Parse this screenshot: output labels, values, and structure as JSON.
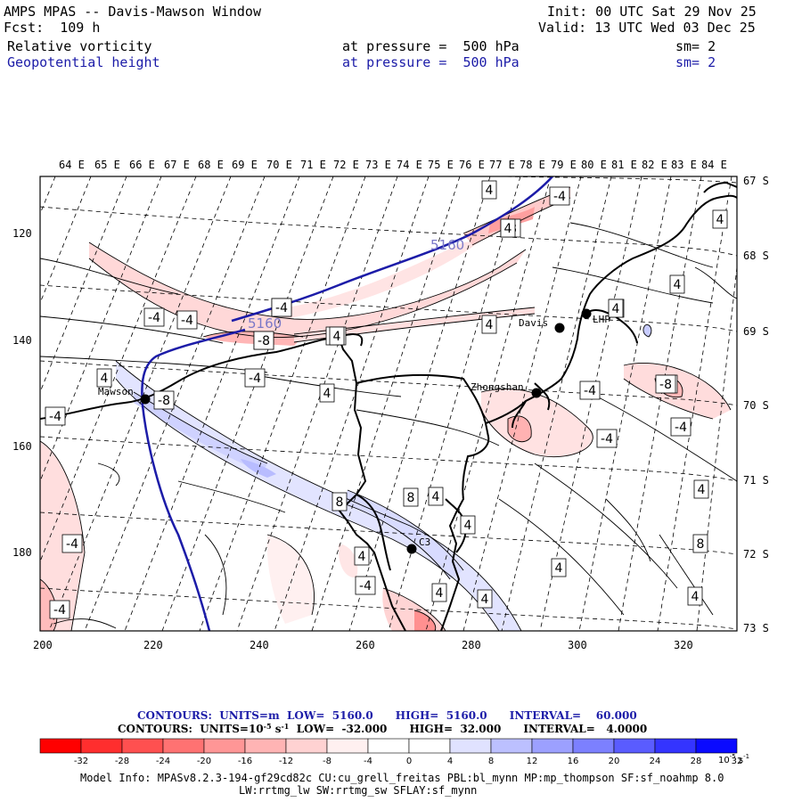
{
  "header": {
    "title": "AMPS MPAS -- Davis-Mawson Window",
    "forecast": "Fcst:  109 h",
    "init": "Init: 00 UTC Sat 29 Nov 25",
    "valid": "Valid: 13 UTC Wed 03 Dec 25",
    "fields": [
      {
        "name": "Relative vorticity",
        "level": "at pressure =  500 hPa",
        "sm": "sm= 2",
        "color": "#000000"
      },
      {
        "name": "Geopotential height",
        "level": "at pressure =  500 hPa",
        "sm": "sm= 2",
        "color": "#1c1ca8"
      }
    ]
  },
  "map": {
    "lon_labels": [
      "64 E",
      "65 E",
      "66 E",
      "67 E",
      "68 E",
      "69 E",
      "70 E",
      "71 E",
      "72 E",
      "73 E",
      "74 E",
      "75 E",
      "76 E",
      "77 E",
      "78 E",
      "79 E",
      "80 E",
      "81 E",
      "82 E",
      "83 E",
      "84 E"
    ],
    "lat_labels": [
      "67 S",
      "68 S",
      "69 S",
      "70 S",
      "71 S",
      "72 S",
      "73 S"
    ],
    "x_ticks": [
      "200",
      "220",
      "240",
      "260",
      "280",
      "300",
      "320"
    ],
    "y_ticks": [
      "120",
      "140",
      "160",
      "180"
    ],
    "stations": [
      "Mawson",
      "Davis",
      "Zhongshan",
      "LHP",
      "C3"
    ],
    "height_labels": [
      "5160",
      "5160"
    ],
    "vort_labels": [
      "4",
      "-4",
      "-8",
      "-4",
      "-4",
      "-4",
      "-8",
      "-4",
      "4",
      "-8",
      "4",
      "4",
      "4",
      "-4",
      "-4",
      "4",
      "-8",
      "-4",
      "-4",
      "-4",
      "4",
      "8",
      "8",
      "4",
      "4",
      "4",
      "4",
      "-4",
      "4",
      "4",
      "-4",
      "-4",
      "4",
      "8",
      "4",
      "-8",
      "4",
      "4",
      "-4",
      "4",
      "-8"
    ]
  },
  "contour_info": {
    "line1": "CONTOURS:  UNITS=m  LOW=  5160.0      HIGH=  5160.0      INTERVAL=    60.000",
    "line2_pre": "CONTOURS:  UNITS=10",
    "line2_sup": "-5",
    "line2_post": " s",
    "line2_sup2": "-1",
    "line2_rest": "  LOW=  -32.000      HIGH=  32.000      INTERVAL=   4.0000"
  },
  "colorbar": {
    "ticks": [
      "-32",
      "-28",
      "-24",
      "-20",
      "-16",
      "-12",
      "-8",
      "-4",
      "0",
      "4",
      "8",
      "12",
      "16",
      "20",
      "24",
      "28",
      "32"
    ],
    "unit": "10",
    "unit_sup": "-5",
    "unit_tail": " s",
    "unit_tail_sup": "-1",
    "colors": [
      "#ff0000",
      "#ff2e2e",
      "#ff5050",
      "#ff7272",
      "#ff9696",
      "#ffb4b4",
      "#ffd2d2",
      "#fff0f0",
      "#ffffff",
      "#ffffff",
      "#e0e2ff",
      "#bcc0ff",
      "#9ca0ff",
      "#7c80ff",
      "#5a5cff",
      "#3434ff",
      "#0a0aff"
    ]
  },
  "model_info": {
    "line1": "Model Info: MPASv8.2.3-194-gf29cd82c CU:cu_grell_freitas PBL:bl_mynn MP:mp_thompson SF:sf_noahmp 8.0",
    "line2": "LW:rrtmg_lw SW:rrtmg_sw SFLAY:sf_mynn"
  }
}
